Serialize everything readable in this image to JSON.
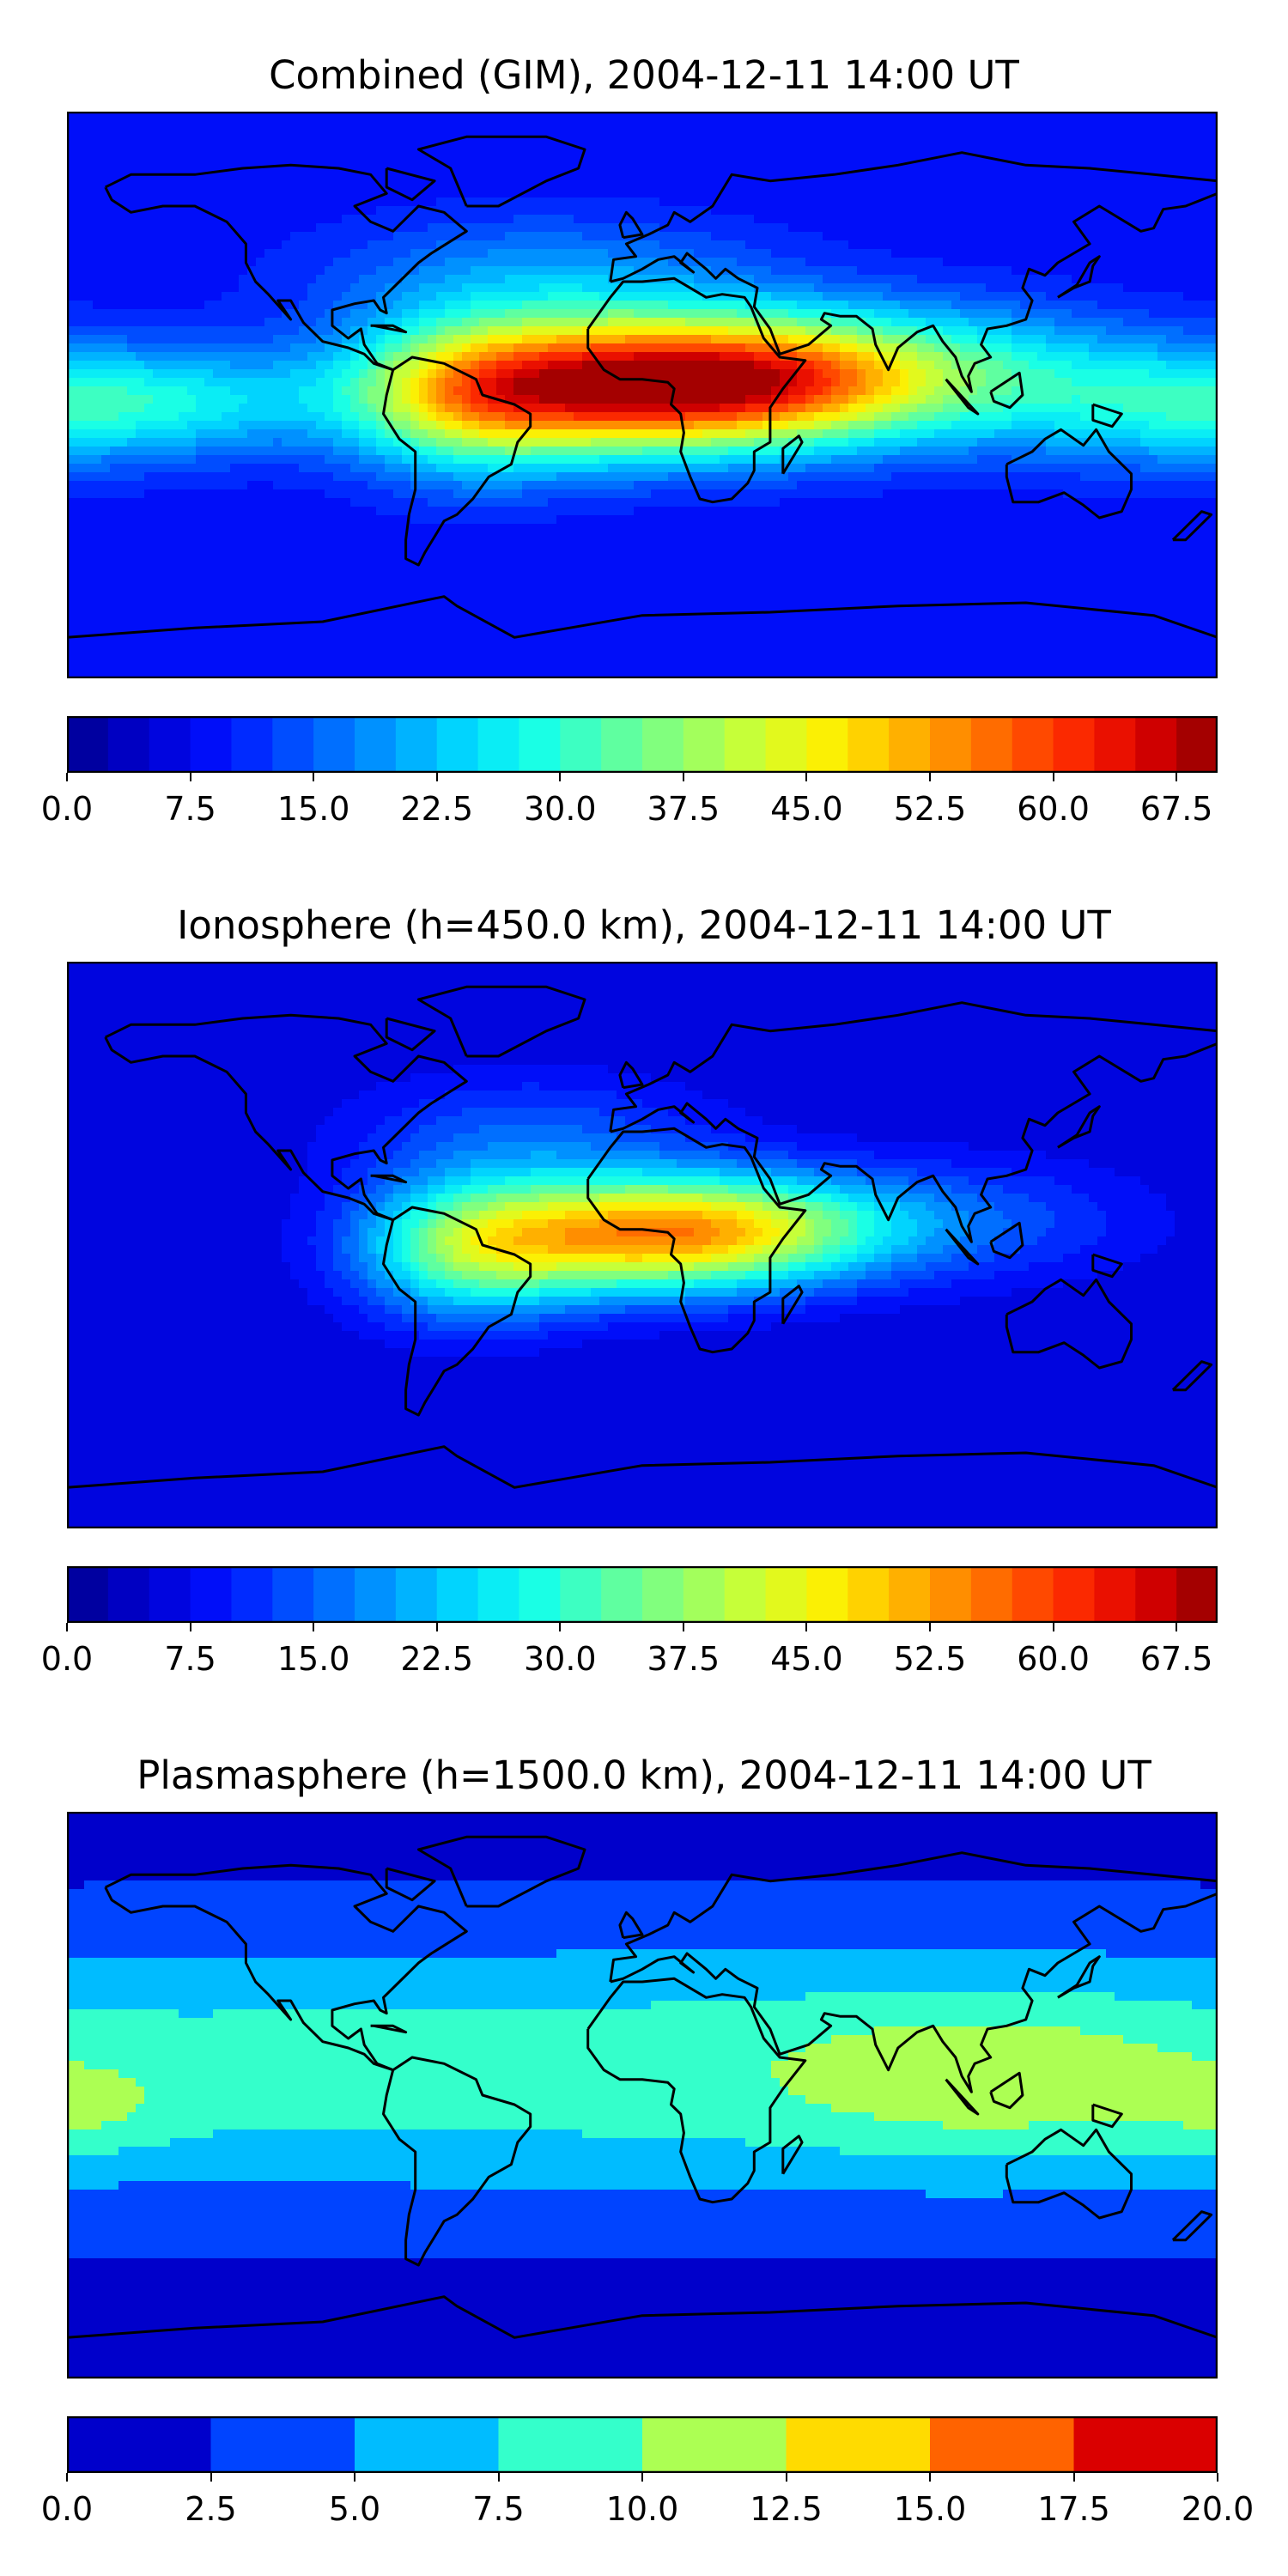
{
  "panels": [
    {
      "id": "combined",
      "title": "Combined (GIM), 2004-12-11 14:00 UT",
      "colorbar": {
        "min": 0,
        "max": 70,
        "levels": 28,
        "ticks": [
          "0.0",
          "7.5",
          "15.0",
          "22.5",
          "30.0",
          "37.5",
          "45.0",
          "52.5",
          "60.0",
          "67.5"
        ]
      },
      "field": {
        "base": 8,
        "blobs": [
          {
            "lon": -8,
            "lat": 3,
            "amp": 52,
            "slon": 48,
            "slat": 15
          },
          {
            "lon": -55,
            "lat": -2,
            "amp": 18,
            "slon": 25,
            "slat": 18
          },
          {
            "lon": 45,
            "lat": 5,
            "amp": 24,
            "slon": 40,
            "slat": 14
          },
          {
            "lon": 100,
            "lat": 8,
            "amp": 14,
            "slon": 45,
            "slat": 15
          },
          {
            "lon": 165,
            "lat": -5,
            "amp": 12,
            "slon": 40,
            "slat": 14
          },
          {
            "lon": -150,
            "lat": -2,
            "amp": 14,
            "slon": 40,
            "slat": 12
          },
          {
            "lon": -30,
            "lat": 38,
            "amp": 10,
            "slon": 50,
            "slat": 14
          }
        ]
      }
    },
    {
      "id": "ionosphere",
      "title": "Ionosphere  (h=450.0 km), 2004-12-11 14:00 UT",
      "colorbar": {
        "min": 0,
        "max": 70,
        "levels": 28,
        "ticks": [
          "0.0",
          "7.5",
          "15.0",
          "22.5",
          "30.0",
          "37.5",
          "45.0",
          "52.5",
          "60.0",
          "67.5"
        ]
      },
      "field": {
        "base": 5,
        "blobs": [
          {
            "lon": -2,
            "lat": 3,
            "amp": 40,
            "slon": 40,
            "slat": 13
          },
          {
            "lon": -55,
            "lat": -2,
            "amp": 22,
            "slon": 25,
            "slat": 16
          },
          {
            "lon": 40,
            "lat": 6,
            "amp": 16,
            "slon": 35,
            "slat": 12
          },
          {
            "lon": 105,
            "lat": 8,
            "amp": 8,
            "slon": 40,
            "slat": 14
          },
          {
            "lon": -35,
            "lat": 35,
            "amp": 9,
            "slon": 40,
            "slat": 14
          }
        ]
      }
    },
    {
      "id": "plasmasphere",
      "title": "Plasmasphere (h=1500.0 km), 2004-12-11 14:00 UT",
      "colorbar": {
        "min": 0,
        "max": 20,
        "levels": 8,
        "ticks": [
          "0.0",
          "2.5",
          "5.0",
          "7.5",
          "10.0",
          "12.5",
          "15.0",
          "17.5",
          "20.0"
        ]
      },
      "field": {
        "base": 1.5,
        "blobs": [
          {
            "lon": 0,
            "lat": 8,
            "amp": 7.5,
            "slon": 400,
            "slat": 30
          },
          {
            "lon": 110,
            "lat": 5,
            "amp": 3.5,
            "slon": 45,
            "slat": 18
          },
          {
            "lon": -175,
            "lat": -5,
            "amp": 2.5,
            "slon": 20,
            "slat": 10
          }
        ]
      }
    }
  ],
  "palette": [
    "#00008f",
    "#0000cf",
    "#0010ff",
    "#0050ff",
    "#0090ff",
    "#00d0ff",
    "#10ffef",
    "#50ffaf",
    "#90ff6f",
    "#d0ff2f",
    "#ffef00",
    "#ffaf00",
    "#ff6f00",
    "#ff2f00",
    "#df0000",
    "#8f0000"
  ]
}
